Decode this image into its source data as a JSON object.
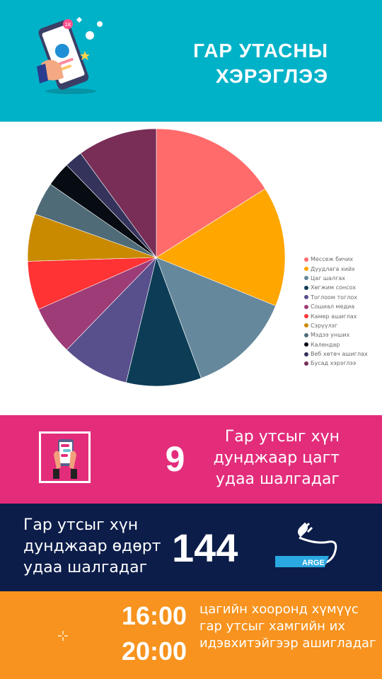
{
  "header": {
    "title_line1": "ГАР УТАСНЫ",
    "title_line2": "ХЭРЭГЛЭЭ",
    "badge_text": "1K",
    "colors": {
      "background": "#00b2c8"
    }
  },
  "chart_data": {
    "type": "pie",
    "title": "",
    "legend_position": "right",
    "slices": [
      {
        "label": "Мессеж бичих",
        "value": 17,
        "color": "#ff6b6b"
      },
      {
        "label": "Дуудлага хийх",
        "value": 16,
        "color": "#ffa600"
      },
      {
        "label": "Цаг шалгах",
        "value": 14,
        "color": "#66889c"
      },
      {
        "label": "Хөгжим сонсох",
        "value": 10,
        "color": "#0d3d56"
      },
      {
        "label": "Тоглоом тоглох",
        "value": 9,
        "color": "#58508d"
      },
      {
        "label": "Сошиал медиа",
        "value": 6.5,
        "color": "#9d3c77"
      },
      {
        "label": "Камер ашиглах",
        "value": 6.5,
        "color": "#ff3333"
      },
      {
        "label": "Сэрүүлэг",
        "value": 6.3,
        "color": "#c98a00"
      },
      {
        "label": "Мэдээ унших",
        "value": 4.4,
        "color": "#4f6b78"
      },
      {
        "label": "Календар",
        "value": 3.3,
        "color": "#070b12"
      },
      {
        "label": "Веб хөтөч ашиглах",
        "value": 2.4,
        "color": "#34335c"
      },
      {
        "label": "Бусад хэрэглээ",
        "value": 10.6,
        "color": "#782e56"
      }
    ]
  },
  "stat1": {
    "number": "9",
    "line1": "Гар утсыг хүн",
    "line2": "дунджаар цагт",
    "line3": "удаа шалгадаг",
    "colors": {
      "background": "#e32d7b"
    }
  },
  "stat2": {
    "line1": "Гар утсыг хүн",
    "line2": "дунджаар өдөрт",
    "line3": "удаа шалгадаг",
    "number": "144",
    "brand": "ARGE",
    "colors": {
      "background": "#0c1d4a"
    }
  },
  "stat3": {
    "time_start": "16:00",
    "time_end": "20:00",
    "line1": "цагийн хооронд хүмүүс",
    "line2": "гар утсыг хамгийн их",
    "line3": "идэвхитэйгээр ашигладаг",
    "colors": {
      "background": "#f7931e"
    }
  },
  "icons": {
    "header": "phone-social-media-icon",
    "stat1": "hands-phone-icon",
    "stat2": "plug-battery-icon",
    "stat3": "sparkle-icon"
  }
}
